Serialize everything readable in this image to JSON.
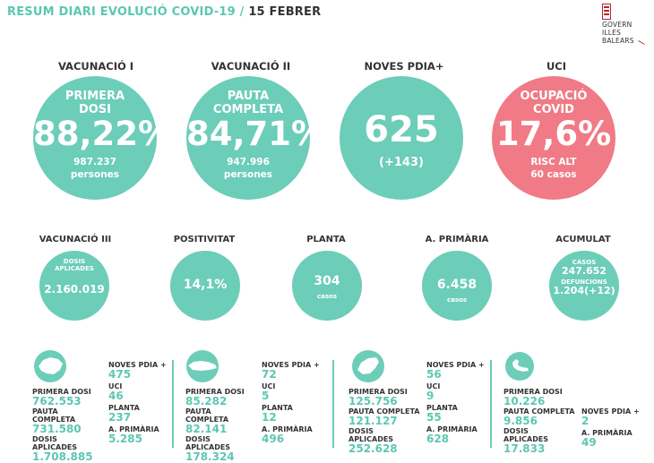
{
  "header": {
    "title": "RESUM DIARI EVOLUCIÓ COVID-19",
    "separator": "/",
    "date": "15 FEBRER"
  },
  "logo": {
    "line1": "GOVERN",
    "line2": "ILLES",
    "line3": "BALEARS"
  },
  "big": [
    {
      "caption": "VACUNACIÓ I",
      "line1": "PRIMERA",
      "line2": "DOSI",
      "value": "88,22%",
      "detail1": "987.237",
      "detail2": "persones"
    },
    {
      "caption": "VACUNACIÓ II",
      "line1": "PAUTA",
      "line2": "COMPLETA",
      "value": "84,71%",
      "detail1": "947.996",
      "detail2": "persones"
    },
    {
      "caption": "NOVES PDIA+",
      "value": "625",
      "detail1": "(+143)"
    },
    {
      "caption": "UCI",
      "line1": "OCUPACIÓ",
      "line2": "COVID",
      "value": "17,6%",
      "detail1": "RISC ALT",
      "detail2": "60 casos"
    }
  ],
  "mid": [
    {
      "caption": "VACUNACIÓ III",
      "label1": "DOSIS",
      "label2": "APLICADES",
      "value": "2.160.019"
    },
    {
      "caption": "POSITIVITAT",
      "value": "14,1%"
    },
    {
      "caption": "PLANTA",
      "value": "304",
      "unit": "casos"
    },
    {
      "caption": "A. PRIMÀRIA",
      "value": "6.458",
      "unit": "casos"
    },
    {
      "caption": "ACUMULAT",
      "label1": "CASOS",
      "value1": "247.652",
      "label2": "DEFUNCIONS",
      "value2": "1.204(+12)"
    }
  ],
  "islands": [
    {
      "name": "Mallorca",
      "primera_dosi": "762.553",
      "pauta_completa": "731.580",
      "dosis_aplicades": "1.708.885",
      "noves_pdia": "475",
      "uci": "46",
      "planta": "237",
      "a_primaria": "5.285"
    },
    {
      "name": "Menorca",
      "primera_dosi": "85.282",
      "pauta_completa": "82.141",
      "dosis_aplicades": "178.324",
      "noves_pdia": "72",
      "uci": "5",
      "planta": "12",
      "a_primaria": "496"
    },
    {
      "name": "Eivissa",
      "primera_dosi": "125.756",
      "pauta_completa": "121.127",
      "dosis_aplicades": "252.628",
      "noves_pdia": "56",
      "uci": "9",
      "planta": "55",
      "a_primaria": "628"
    },
    {
      "name": "Formentera",
      "primera_dosi": "10.226",
      "pauta_completa": "9.856",
      "dosis_aplicades": "17.833",
      "noves_pdia": "2",
      "a_primaria": "49"
    }
  ],
  "labels": {
    "primera_dosi": "PRIMERA DOSI",
    "pauta_completa": "PAUTA COMPLETA",
    "dosis_aplicades": "DOSIS APLICADES",
    "noves_pdia": "NOVES PDIA +",
    "uci": "UCI",
    "planta": "PLANTA",
    "a_primaria": "A. PRIMÀRIA"
  },
  "colors": {
    "teal": "#6ccdb9",
    "red": "#f07a85",
    "brand_red": "#b3262d"
  }
}
